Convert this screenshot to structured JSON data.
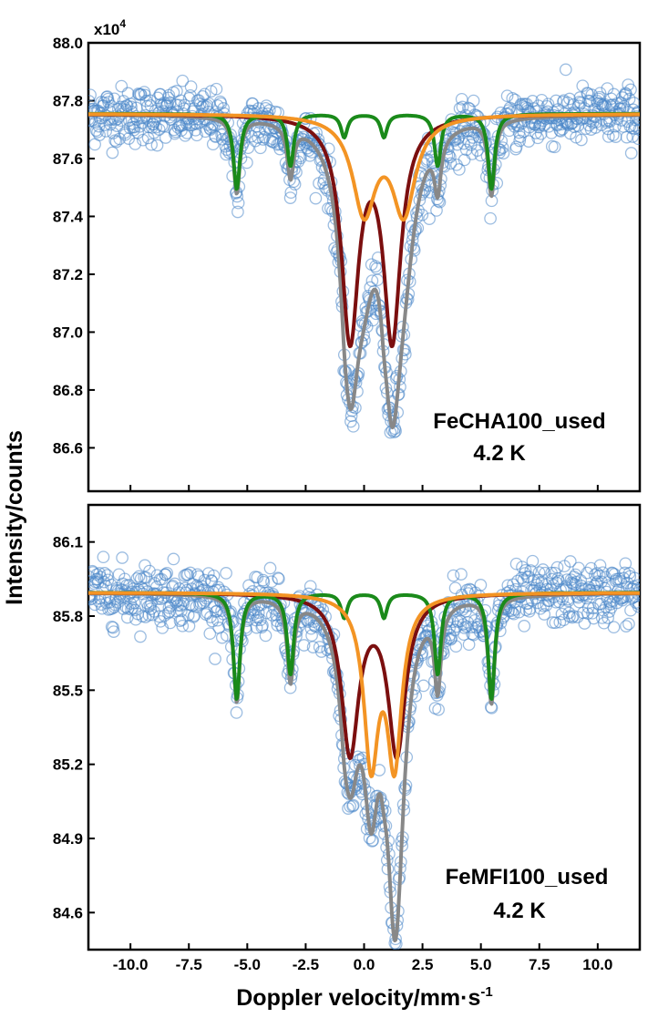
{
  "chart_data": {
    "type": "scatter",
    "xlabel": "Doppler velocity/mm·s",
    "xlabel_superscript": "-1",
    "ylabel": "Intensity/counts",
    "xlim": [
      -11.8,
      11.8
    ],
    "xticks": [
      -10.0,
      -7.5,
      -5.0,
      -2.5,
      0.0,
      2.5,
      5.0,
      7.5,
      10.0
    ],
    "xtick_labels": [
      "-10.0",
      "-7.5",
      "-5.0",
      "-2.5",
      "0.0",
      "2.5",
      "5.0",
      "7.5",
      "10.0"
    ],
    "grid": false,
    "colors": {
      "data_points": "#4a86c8",
      "total_fit": "#888888",
      "doublet_dark": "#7b0f0f",
      "doublet_orange": "#f39424",
      "sextet_green": "#1a8a1a"
    },
    "panels": [
      {
        "y_multiplier": "x10",
        "y_multiplier_exp": "4",
        "annotation_line1": "FeCHA100_used",
        "annotation_line2": "4.2 K",
        "ylim": [
          86.45,
          88.0
        ],
        "yticks": [
          86.6,
          86.8,
          87.0,
          87.2,
          87.4,
          87.6,
          87.8,
          88.0
        ],
        "ytick_labels": [
          "86.6",
          "86.8",
          "87.0",
          "87.2",
          "87.4",
          "87.6",
          "87.8",
          "88.0"
        ],
        "baseline": 87.755,
        "noise": 0.09,
        "n_points": 850,
        "sextet": {
          "name": "",
          "positions": [
            -5.45,
            -3.15,
            -0.85,
            0.85,
            3.15,
            5.45
          ],
          "depths": [
            0.26,
            0.18,
            0.08,
            0.08,
            0.18,
            0.26
          ],
          "width": 0.17
        },
        "doublet_dark": {
          "name": "",
          "positions": [
            -0.6,
            1.2
          ],
          "depths": [
            0.76,
            0.76
          ],
          "width": 0.45
        },
        "doublet_orange": {
          "name": "",
          "positions": [
            0.0,
            1.7
          ],
          "depths": [
            0.33,
            0.33
          ],
          "width": 0.6
        }
      },
      {
        "y_multiplier": "",
        "y_multiplier_exp": "",
        "annotation_line1": "FeMFI100_used",
        "annotation_line2": "4.2 K",
        "ylim": [
          84.45,
          86.25
        ],
        "yticks": [
          84.6,
          84.9,
          85.2,
          85.5,
          85.8,
          86.1
        ],
        "ytick_labels": [
          "84.6",
          "84.9",
          "85.2",
          "85.5",
          "85.8",
          "86.1"
        ],
        "baseline": 85.895,
        "noise": 0.11,
        "n_points": 850,
        "sextet": {
          "name": "",
          "positions": [
            -5.45,
            -3.15,
            -0.85,
            0.85,
            3.15,
            5.45
          ],
          "depths": [
            0.43,
            0.33,
            0.1,
            0.1,
            0.33,
            0.43
          ],
          "width": 0.17
        },
        "doublet_dark": {
          "name": "",
          "positions": [
            -0.6,
            1.4
          ],
          "depths": [
            0.64,
            0.64
          ],
          "width": 0.45
        },
        "doublet_orange": {
          "name": "",
          "positions": [
            0.3,
            1.3
          ],
          "depths": [
            0.66,
            0.66
          ],
          "width": 0.38
        }
      }
    ]
  }
}
